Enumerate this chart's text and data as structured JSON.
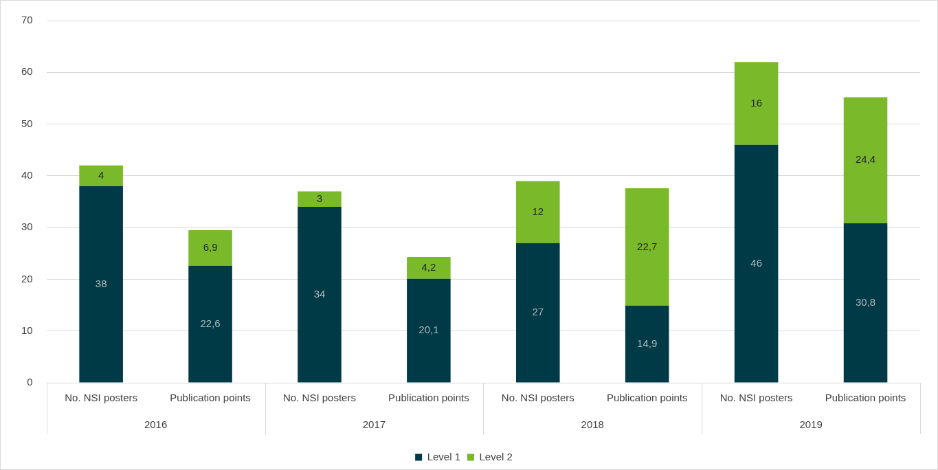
{
  "chart_data": {
    "type": "bar",
    "stacked": true,
    "categories": [
      "No. NSI posters",
      "Publication points",
      "No. NSI posters",
      "Publication points",
      "No. NSI posters",
      "Publication points",
      "No. NSI posters",
      "Publication points"
    ],
    "annotations": [
      "2016",
      "2017",
      "2018",
      "2019"
    ],
    "series": [
      {
        "name": "Level 1",
        "color": "#003a47",
        "values": [
          38,
          22.6,
          34,
          20.1,
          27,
          14.9,
          46,
          30.8
        ],
        "value_labels": [
          "38",
          "22,6",
          "34",
          "20,1",
          "27",
          "14,9",
          "46",
          "30,8"
        ]
      },
      {
        "name": "Level 2",
        "color": "#7ab929",
        "values": [
          4,
          6.9,
          3,
          4.2,
          12,
          22.7,
          16,
          24.4
        ],
        "value_labels": [
          "4",
          "6,9",
          "3",
          "4,2",
          "12",
          "22,7",
          "16",
          "24,4"
        ]
      }
    ],
    "ylim": [
      0,
      70
    ],
    "yticks": [
      0,
      10,
      20,
      30,
      40,
      50,
      60,
      70
    ],
    "grid": "y",
    "legend": "bottom"
  }
}
